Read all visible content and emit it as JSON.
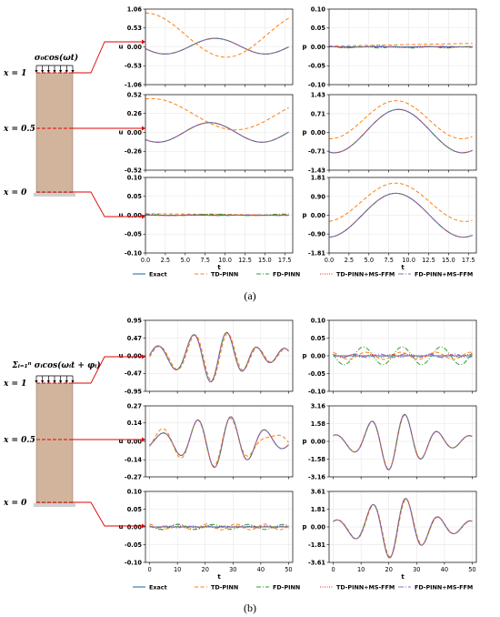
{
  "colors": {
    "exact": "#1f77b4",
    "td_pinn": "#ff7f0e",
    "fd_pinn": "#2ca02c",
    "td_pinn_msffm": "#d62728",
    "fd_pinn_msffm": "#9467bd",
    "column_fill": "#d2b49c",
    "marker": "#e00000"
  },
  "legend": {
    "labels": [
      "Exact",
      "TD-PINN",
      "FD-PINN",
      "TD-PINN+MS-FFM",
      "FD-PINN+MS-FFM"
    ],
    "placement": "bottom"
  },
  "panels": [
    {
      "label": "(a)",
      "load": "σ₀cos(ωt)",
      "positions": [
        "x = 1",
        "x = 0.5",
        "x = 0"
      ],
      "xlabel": "t",
      "xticks": [
        0.0,
        2.5,
        5.0,
        7.5,
        10.0,
        12.5,
        15.0,
        17.5
      ],
      "xtick_labels": [
        "0.0",
        "2.5",
        "5.0",
        "7.5",
        "10.0",
        "12.5",
        "15.0",
        "17.5"
      ],
      "xlim": [
        0,
        18.5
      ]
    },
    {
      "label": "(b)",
      "load": "Σᵢ₌₁ⁿ σᵢcos(ωᵢt + φᵢ)",
      "positions": [
        "x = 1",
        "x = 0.5",
        "x = 0"
      ],
      "xlabel": "t",
      "xticks": [
        0,
        10,
        20,
        30,
        40,
        50
      ],
      "xtick_labels": [
        "0",
        "10",
        "20",
        "30",
        "40",
        "50"
      ],
      "xlim": [
        -1.5,
        51.5
      ]
    }
  ],
  "chart_data": [
    {
      "panel": "(a)",
      "row": "x=1",
      "type": "line",
      "ylabel": "u",
      "ylim": [
        -1.06,
        1.06
      ],
      "yticks": [
        "1.06",
        "0.53",
        "0.00",
        "-0.53",
        "-1.06"
      ],
      "series": [
        {
          "name": "Exact",
          "kind": "cos",
          "amp": 0.22,
          "omega": 0.5,
          "phase": 1.9,
          "offset": 0.02
        },
        {
          "name": "TD-PINN",
          "kind": "cos",
          "amp": 0.62,
          "omega": 0.31,
          "phase": 0.0,
          "offset": 0.33
        },
        {
          "name": "FD-PINN",
          "kind": "cos",
          "amp": 0.22,
          "omega": 0.5,
          "phase": 1.9,
          "offset": 0.02
        },
        {
          "name": "TD-PINN+MS-FFM",
          "kind": "cos",
          "amp": 0.22,
          "omega": 0.5,
          "phase": 1.9,
          "offset": 0.02
        },
        {
          "name": "FD-PINN+MS-FFM",
          "kind": "cos",
          "amp": 0.22,
          "omega": 0.5,
          "phase": 1.9,
          "offset": 0.02
        }
      ]
    },
    {
      "panel": "(a)",
      "row": "x=1",
      "type": "line",
      "ylabel": "p",
      "ylim": [
        -0.1,
        0.1
      ],
      "yticks": [
        "0.10",
        "0.05",
        "0.00",
        "-0.05",
        "-0.10"
      ],
      "series": [
        {
          "name": "Exact",
          "kind": "cos",
          "amp": 0.0,
          "omega": 0.5,
          "phase": 0.0,
          "offset": 0.0
        },
        {
          "name": "TD-PINN",
          "kind": "lin",
          "a": 0.002,
          "b": 0.0004
        },
        {
          "name": "FD-PINN",
          "kind": "cos",
          "amp": 0.002,
          "omega": 1.5,
          "phase": 0.0,
          "offset": -0.001
        },
        {
          "name": "TD-PINN+MS-FFM",
          "kind": "cos",
          "amp": 0.002,
          "omega": 1.0,
          "phase": 0.5,
          "offset": 0.0
        },
        {
          "name": "FD-PINN+MS-FFM",
          "kind": "cos",
          "amp": 0.0015,
          "omega": 0.8,
          "phase": 1.0,
          "offset": 0.0
        }
      ]
    },
    {
      "panel": "(a)",
      "row": "x=0.5",
      "type": "line",
      "ylabel": "u",
      "ylim": [
        -0.52,
        0.52
      ],
      "yticks": [
        "0.52",
        "0.26",
        "0.00",
        "-0.26",
        "-0.52"
      ],
      "series": [
        {
          "name": "Exact",
          "kind": "cos",
          "amp": 0.135,
          "omega": 0.48,
          "phase": 2.4,
          "offset": 0.0
        },
        {
          "name": "TD-PINN",
          "kind": "cos",
          "amp": 0.215,
          "omega": 0.3,
          "phase": -0.25,
          "offset": 0.25
        },
        {
          "name": "FD-PINN",
          "kind": "cos",
          "amp": 0.135,
          "omega": 0.48,
          "phase": 2.4,
          "offset": 0.0
        },
        {
          "name": "TD-PINN+MS-FFM",
          "kind": "cos",
          "amp": 0.135,
          "omega": 0.48,
          "phase": 2.4,
          "offset": 0.0
        },
        {
          "name": "FD-PINN+MS-FFM",
          "kind": "cos",
          "amp": 0.135,
          "omega": 0.48,
          "phase": 2.4,
          "offset": 0.0
        }
      ]
    },
    {
      "panel": "(a)",
      "row": "x=0.5",
      "type": "line",
      "ylabel": "p",
      "ylim": [
        -1.43,
        1.43
      ],
      "yticks": [
        "1.43",
        "0.71",
        "0.00",
        "-0.71",
        "-1.43"
      ],
      "series": [
        {
          "name": "Exact",
          "kind": "cos",
          "amp": 0.82,
          "omega": 0.39,
          "phase": -3.4,
          "offset": 0.05
        },
        {
          "name": "TD-PINN",
          "kind": "cos",
          "amp": 0.72,
          "omega": 0.38,
          "phase": -3.2,
          "offset": 0.48
        },
        {
          "name": "FD-PINN",
          "kind": "cos",
          "amp": 0.82,
          "omega": 0.39,
          "phase": -3.4,
          "offset": 0.05
        },
        {
          "name": "TD-PINN+MS-FFM",
          "kind": "cos",
          "amp": 0.82,
          "omega": 0.39,
          "phase": -3.4,
          "offset": 0.05
        },
        {
          "name": "FD-PINN+MS-FFM",
          "kind": "cos",
          "amp": 0.82,
          "omega": 0.39,
          "phase": -3.4,
          "offset": 0.05
        }
      ]
    },
    {
      "panel": "(a)",
      "row": "x=0",
      "type": "line",
      "ylabel": "u",
      "ylim": [
        -0.1,
        0.1
      ],
      "yticks": [
        "0.10",
        "0.05",
        "0.00",
        "-0.05",
        "-0.10"
      ],
      "series": [
        {
          "name": "Exact",
          "kind": "cos",
          "amp": 0.0,
          "omega": 0.5,
          "phase": 0.0,
          "offset": 0.0
        },
        {
          "name": "TD-PINN",
          "kind": "lin",
          "a": 0.004,
          "b": -0.0002
        },
        {
          "name": "FD-PINN",
          "kind": "cos",
          "amp": 0.002,
          "omega": 0.7,
          "phase": 0.3,
          "offset": 0.001
        },
        {
          "name": "TD-PINN+MS-FFM",
          "kind": "cos",
          "amp": 0.001,
          "omega": 1.1,
          "phase": 0.0,
          "offset": 0.0
        },
        {
          "name": "FD-PINN+MS-FFM",
          "kind": "cos",
          "amp": 0.001,
          "omega": 0.9,
          "phase": 0.7,
          "offset": 0.0
        }
      ]
    },
    {
      "panel": "(a)",
      "row": "x=0",
      "type": "line",
      "ylabel": "p",
      "ylim": [
        -1.81,
        1.81
      ],
      "yticks": [
        "1.81",
        "0.90",
        "0.00",
        "-0.90",
        "-1.81"
      ],
      "series": [
        {
          "name": "Exact",
          "kind": "cos",
          "amp": 1.05,
          "omega": 0.37,
          "phase": -3.1,
          "offset": 0.0
        },
        {
          "name": "TD-PINN",
          "kind": "cos",
          "amp": 0.92,
          "omega": 0.36,
          "phase": -3.0,
          "offset": 0.62
        },
        {
          "name": "FD-PINN",
          "kind": "cos",
          "amp": 1.05,
          "omega": 0.37,
          "phase": -3.1,
          "offset": 0.0
        },
        {
          "name": "TD-PINN+MS-FFM",
          "kind": "cos",
          "amp": 1.05,
          "omega": 0.37,
          "phase": -3.1,
          "offset": 0.0
        },
        {
          "name": "FD-PINN+MS-FFM",
          "kind": "cos",
          "amp": 1.05,
          "omega": 0.37,
          "phase": -3.1,
          "offset": 0.0
        }
      ]
    },
    {
      "panel": "(b)",
      "row": "x=1",
      "type": "line",
      "ylabel": "u",
      "ylim": [
        -0.95,
        0.95
      ],
      "yticks": [
        "0.95",
        "0.47",
        "0.00",
        "-0.47",
        "-0.95"
      ],
      "series": [
        {
          "name": "Exact",
          "kind": "wave",
          "amp": 0.7,
          "env_center": 23,
          "env_width": 14,
          "omega": 0.52,
          "phase": 4.3,
          "base_amp": 0.22,
          "base_omega": 0.55
        },
        {
          "name": "TD-PINN",
          "kind": "wave",
          "amp": 0.68,
          "env_center": 23,
          "env_width": 14,
          "omega": 0.52,
          "phase": 4.1,
          "base_amp": 0.2,
          "base_omega": 0.55
        },
        {
          "name": "FD-PINN",
          "kind": "wave",
          "amp": 0.7,
          "env_center": 23,
          "env_width": 14,
          "omega": 0.52,
          "phase": 4.3,
          "base_amp": 0.22,
          "base_omega": 0.55
        },
        {
          "name": "TD-PINN+MS-FFM",
          "kind": "wave",
          "amp": 0.7,
          "env_center": 23,
          "env_width": 14,
          "omega": 0.52,
          "phase": 4.3,
          "base_amp": 0.22,
          "base_omega": 0.55
        },
        {
          "name": "FD-PINN+MS-FFM",
          "kind": "wave",
          "amp": 0.7,
          "env_center": 23,
          "env_width": 14,
          "omega": 0.52,
          "phase": 4.3,
          "base_amp": 0.22,
          "base_omega": 0.55
        }
      ]
    },
    {
      "panel": "(b)",
      "row": "x=1",
      "type": "line",
      "ylabel": "p",
      "ylim": [
        -0.1,
        0.1
      ],
      "yticks": [
        "0.10",
        "0.05",
        "0.00",
        "-0.05",
        "-0.10"
      ],
      "series": [
        {
          "name": "Exact",
          "kind": "cos",
          "amp": 0.0,
          "omega": 0.5,
          "phase": 0.0,
          "offset": 0.0
        },
        {
          "name": "TD-PINN",
          "kind": "cos",
          "amp": 0.01,
          "omega": 0.5,
          "phase": 0.4,
          "offset": 0.0
        },
        {
          "name": "FD-PINN",
          "kind": "cos",
          "amp": 0.025,
          "omega": 0.45,
          "phase": 1.4,
          "offset": 0.0
        },
        {
          "name": "TD-PINN+MS-FFM",
          "kind": "cos",
          "amp": 0.004,
          "omega": 0.9,
          "phase": 0.0,
          "offset": 0.0
        },
        {
          "name": "FD-PINN+MS-FFM",
          "kind": "cos",
          "amp": 0.005,
          "omega": 0.7,
          "phase": 0.8,
          "offset": 0.0
        }
      ]
    },
    {
      "panel": "(b)",
      "row": "x=0.5",
      "type": "line",
      "ylabel": "u",
      "ylim": [
        -0.27,
        0.27
      ],
      "yticks": [
        "0.27",
        "0.14",
        "0.00",
        "-0.14",
        "-0.27"
      ],
      "series": [
        {
          "name": "Exact",
          "kind": "wave",
          "amp": 0.2,
          "env_center": 25,
          "env_width": 15,
          "omega": 0.52,
          "phase": 3.6,
          "base_amp": 0.04,
          "base_omega": 0.5
        },
        {
          "name": "TD-PINN",
          "kind": "wave",
          "amp": 0.19,
          "env_center": 25,
          "env_width": 15,
          "omega": 0.52,
          "phase": 3.7,
          "base_amp": 0.08,
          "base_omega": 0.45
        },
        {
          "name": "FD-PINN",
          "kind": "wave",
          "amp": 0.2,
          "env_center": 25,
          "env_width": 15,
          "omega": 0.52,
          "phase": 3.6,
          "base_amp": 0.04,
          "base_omega": 0.5
        },
        {
          "name": "TD-PINN+MS-FFM",
          "kind": "wave",
          "amp": 0.2,
          "env_center": 25,
          "env_width": 15,
          "omega": 0.52,
          "phase": 3.6,
          "base_amp": 0.04,
          "base_omega": 0.5
        },
        {
          "name": "FD-PINN+MS-FFM",
          "kind": "wave",
          "amp": 0.2,
          "env_center": 25,
          "env_width": 15,
          "omega": 0.52,
          "phase": 3.6,
          "base_amp": 0.04,
          "base_omega": 0.5
        }
      ]
    },
    {
      "panel": "(b)",
      "row": "x=0.5",
      "type": "line",
      "ylabel": "p",
      "ylim": [
        -3.16,
        3.16
      ],
      "yticks": [
        "3.16",
        "1.58",
        "0.00",
        "-1.58",
        "-3.16"
      ],
      "series": [
        {
          "name": "Exact",
          "kind": "wave",
          "amp": 2.6,
          "env_center": 22,
          "env_width": 12,
          "omega": 0.52,
          "phase": 5.4,
          "base_amp": 0.5,
          "base_omega": 0.52
        },
        {
          "name": "TD-PINN",
          "kind": "wave",
          "amp": 2.55,
          "env_center": 22,
          "env_width": 12,
          "omega": 0.52,
          "phase": 5.35,
          "base_amp": 0.5,
          "base_omega": 0.52
        },
        {
          "name": "FD-PINN",
          "kind": "wave",
          "amp": 2.6,
          "env_center": 22,
          "env_width": 12,
          "omega": 0.52,
          "phase": 5.4,
          "base_amp": 0.5,
          "base_omega": 0.52
        },
        {
          "name": "TD-PINN+MS-FFM",
          "kind": "wave",
          "amp": 2.6,
          "env_center": 22,
          "env_width": 12,
          "omega": 0.52,
          "phase": 5.4,
          "base_amp": 0.5,
          "base_omega": 0.52
        },
        {
          "name": "FD-PINN+MS-FFM",
          "kind": "wave",
          "amp": 2.6,
          "env_center": 22,
          "env_width": 12,
          "omega": 0.52,
          "phase": 5.4,
          "base_amp": 0.5,
          "base_omega": 0.52
        }
      ]
    },
    {
      "panel": "(b)",
      "row": "x=0",
      "type": "line",
      "ylabel": "u",
      "ylim": [
        -0.1,
        0.1
      ],
      "yticks": [
        "0.10",
        "0.05",
        "0.00",
        "-0.05",
        "-0.10"
      ],
      "series": [
        {
          "name": "Exact",
          "kind": "cos",
          "amp": 0.0,
          "omega": 0.5,
          "phase": 0.0,
          "offset": 0.0
        },
        {
          "name": "TD-PINN",
          "kind": "cos",
          "amp": 0.008,
          "omega": 0.6,
          "phase": 0.2,
          "offset": 0.0
        },
        {
          "name": "FD-PINN",
          "kind": "cos",
          "amp": 0.007,
          "omega": 0.5,
          "phase": 1.2,
          "offset": 0.0
        },
        {
          "name": "TD-PINN+MS-FFM",
          "kind": "cos",
          "amp": 0.003,
          "omega": 1.2,
          "phase": 0.0,
          "offset": 0.0
        },
        {
          "name": "FD-PINN+MS-FFM",
          "kind": "cos",
          "amp": 0.003,
          "omega": 0.9,
          "phase": 0.5,
          "offset": 0.0
        }
      ]
    },
    {
      "panel": "(b)",
      "row": "x=0",
      "type": "line",
      "ylabel": "p",
      "ylim": [
        -3.61,
        3.61
      ],
      "yticks": [
        "3.61",
        "1.81",
        "0.00",
        "-1.81",
        "-3.61"
      ],
      "series": [
        {
          "name": "Exact",
          "kind": "wave",
          "amp": 3.2,
          "env_center": 22,
          "env_width": 12,
          "omega": 0.52,
          "phase": 5.2,
          "base_amp": 0.6,
          "base_omega": 0.52
        },
        {
          "name": "TD-PINN",
          "kind": "wave",
          "amp": 3.1,
          "env_center": 22,
          "env_width": 12,
          "omega": 0.52,
          "phase": 5.1,
          "base_amp": 0.6,
          "base_omega": 0.52
        },
        {
          "name": "FD-PINN",
          "kind": "wave",
          "amp": 3.2,
          "env_center": 22,
          "env_width": 12,
          "omega": 0.52,
          "phase": 5.2,
          "base_amp": 0.6,
          "base_omega": 0.52
        },
        {
          "name": "TD-PINN+MS-FFM",
          "kind": "wave",
          "amp": 3.2,
          "env_center": 22,
          "env_width": 12,
          "omega": 0.52,
          "phase": 5.2,
          "base_amp": 0.6,
          "base_omega": 0.52
        },
        {
          "name": "FD-PINN+MS-FFM",
          "kind": "wave",
          "amp": 3.2,
          "env_center": 22,
          "env_width": 12,
          "omega": 0.52,
          "phase": 5.2,
          "base_amp": 0.6,
          "base_omega": 0.52
        }
      ]
    }
  ]
}
